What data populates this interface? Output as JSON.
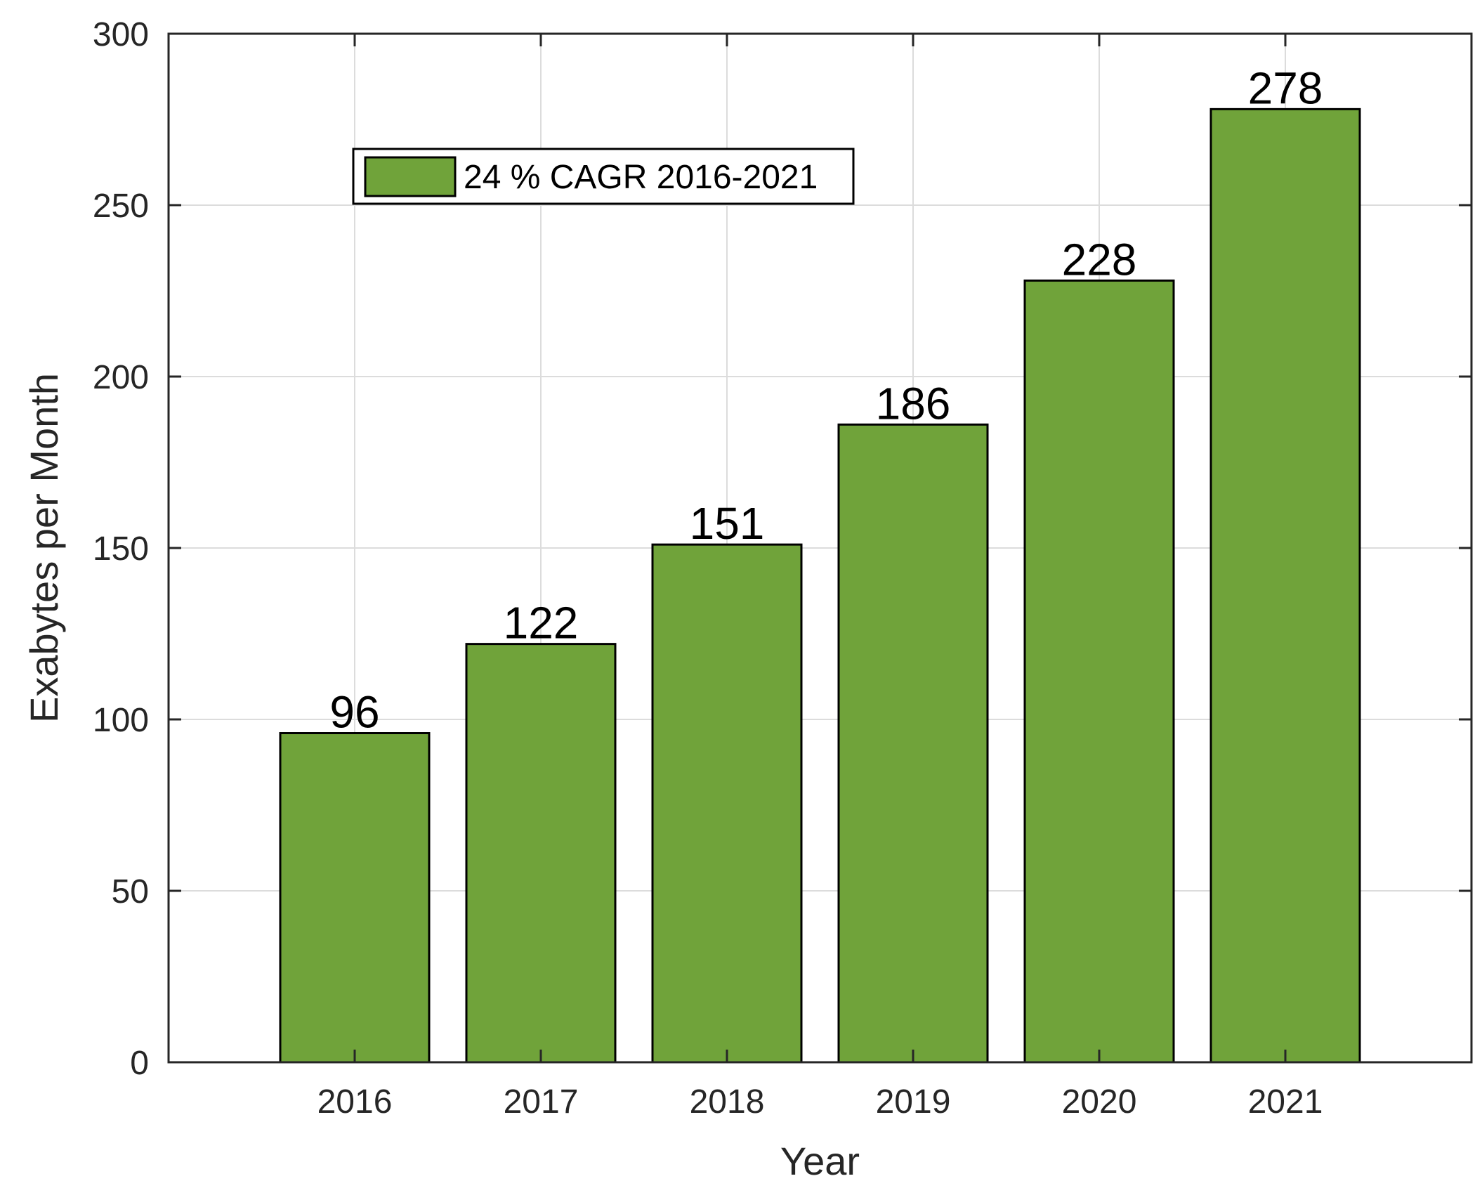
{
  "chart_data": {
    "type": "bar",
    "categories": [
      "2016",
      "2017",
      "2018",
      "2019",
      "2020",
      "2021"
    ],
    "values": [
      96,
      122,
      151,
      186,
      228,
      278
    ],
    "data_labels": [
      "96",
      "122",
      "151",
      "186",
      "228",
      "278"
    ],
    "series": [
      {
        "name": "24 % CAGR 2016-2021",
        "values": [
          96,
          122,
          151,
          186,
          228,
          278
        ],
        "color": "#70a33a"
      }
    ],
    "title": "",
    "xlabel": "Year",
    "ylabel": "Exabytes per Month",
    "ylim": [
      0,
      300
    ],
    "yticks": [
      0,
      50,
      100,
      150,
      200,
      250,
      300
    ],
    "ytick_labels": [
      "0",
      "50",
      "100",
      "150",
      "200",
      "250",
      "300"
    ],
    "grid": true,
    "legend": {
      "position": "top-left",
      "entries": [
        "24 % CAGR 2016-2021"
      ]
    },
    "colors": {
      "bar": "#70a33a",
      "grid": "#dcdcdc",
      "axis": "#262626"
    }
  }
}
